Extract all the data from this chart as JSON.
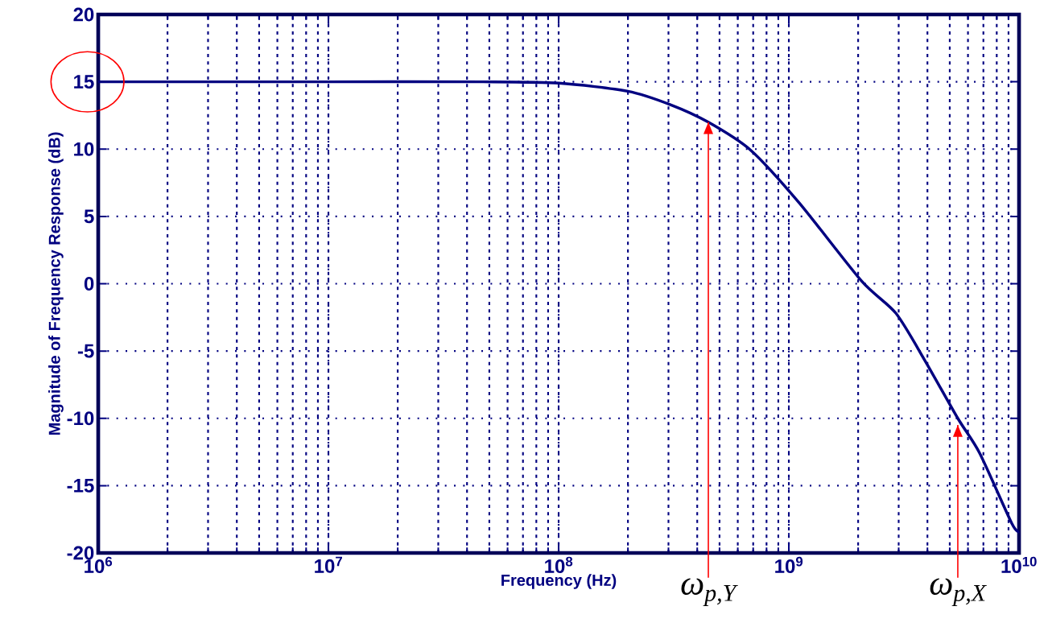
{
  "chart_data": {
    "type": "line",
    "xlabel": "Frequency (Hz)",
    "ylabel": "Magnitude of Frequency Response (dB)",
    "x": [
      1000000.0,
      10000000.0,
      47000000.0,
      100000000.0,
      200000000.0,
      306000000.0,
      447000000.0,
      685000000.0,
      1110000000.0,
      2070000000.0,
      2920000000.0,
      3930000000.0,
      5420000000.0,
      6750000000.0,
      9300000000.0,
      10000000000.0
    ],
    "series": [
      {
        "color": "#000080",
        "values": [
          15,
          15,
          15,
          14.9,
          14.3,
          13.3,
          12,
          9.9,
          6,
          0.2,
          -2.2,
          -5.8,
          -10,
          -12.6,
          -17.8,
          -18.4
        ]
      }
    ],
    "xlim": [
      1000000.0,
      10000000000.0
    ],
    "ylim": [
      -20,
      20
    ],
    "xticks": [
      {
        "value": 1000000.0,
        "label": "10$^{6}$"
      },
      {
        "value": 10000000.0,
        "label": "10$^{7}$"
      },
      {
        "value": 100000000.0,
        "label": "10$^{8}$"
      },
      {
        "value": 1000000000.0,
        "label": "10$^{9}$"
      },
      {
        "value": 10000000000.0,
        "label": "10$^{10}$"
      }
    ],
    "yticks": [
      -20,
      -15,
      -10,
      -5,
      0,
      5,
      10,
      15,
      20
    ],
    "log": "x",
    "grid": true,
    "annotations": [
      {
        "text": "ω$_{p,Y}$",
        "x": 447000000.0,
        "y": 12
      },
      {
        "text": "ω$_{p,X}$",
        "x": 5420000000.0,
        "y": -10.5
      }
    ]
  }
}
